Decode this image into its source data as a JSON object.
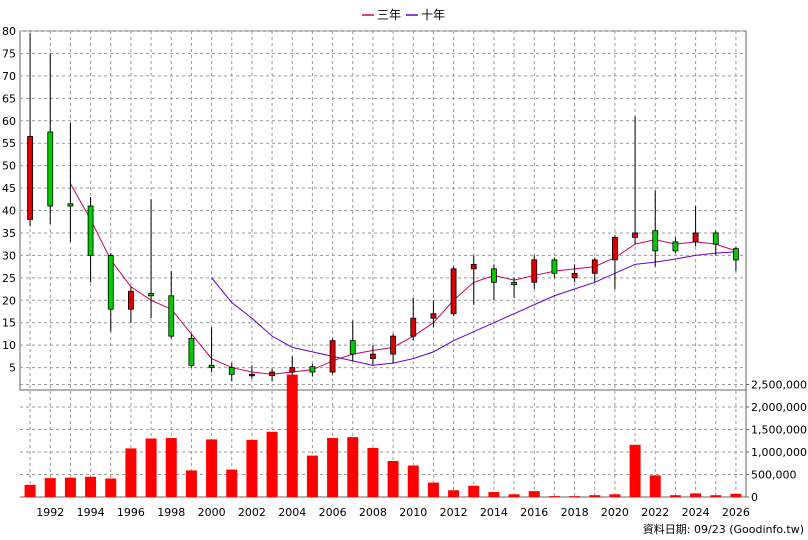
{
  "legend": [
    {
      "label": "三年",
      "color": "#cc0066"
    },
    {
      "label": "十年",
      "color": "#6600cc"
    }
  ],
  "footer": "資料日期: 09/23  (Goodinfo.tw)",
  "chart_data": {
    "type": "candlestick+bar",
    "price_axis": {
      "min": 0,
      "max": 80,
      "ticks": [
        5,
        10,
        15,
        20,
        25,
        30,
        35,
        40,
        45,
        50,
        55,
        60,
        65,
        70,
        75,
        80
      ],
      "side": "left"
    },
    "volume_axis": {
      "min": 0,
      "max": 2600000,
      "ticks": [
        0,
        500000,
        1000000,
        1500000,
        2000000,
        2500000
      ],
      "tick_labels": [
        "0",
        "500,000",
        "1,000,000",
        "1,500,000",
        "2,000,000",
        "2,500,000"
      ],
      "side": "right"
    },
    "x_axis": {
      "min": 1990.5,
      "max": 2026.5,
      "ticks": [
        1992,
        1994,
        1996,
        1998,
        2000,
        2002,
        2004,
        2006,
        2008,
        2010,
        2012,
        2014,
        2016,
        2018,
        2020,
        2022,
        2024,
        2026
      ]
    },
    "grid": true,
    "legend_position": "top-center",
    "colors": {
      "up": "#dd0000",
      "down": "#00cc00",
      "ma3": "#cc0066",
      "ma10": "#6600cc",
      "volume": "#ff0000",
      "grid": "#999999"
    },
    "candles": [
      {
        "year": 1991,
        "open": 38,
        "close": 56.5,
        "high": 79.5,
        "low": 36.5
      },
      {
        "year": 1992,
        "open": 57.5,
        "close": 41,
        "high": 75,
        "low": 37
      },
      {
        "year": 1993,
        "open": 41.5,
        "close": 41,
        "high": 59.5,
        "low": 33
      },
      {
        "year": 1994,
        "open": 41,
        "close": 30,
        "high": 43,
        "low": 24
      },
      {
        "year": 1995,
        "open": 30,
        "close": 18,
        "high": 30.5,
        "low": 13
      },
      {
        "year": 1996,
        "open": 18,
        "close": 22,
        "high": 23,
        "low": 15
      },
      {
        "year": 1997,
        "open": 21.5,
        "close": 21,
        "high": 42.5,
        "low": 16
      },
      {
        "year": 1998,
        "open": 21,
        "close": 12,
        "high": 26.5,
        "low": 11.5
      },
      {
        "year": 1999,
        "open": 11.5,
        "close": 5.5,
        "high": 12.5,
        "low": 5
      },
      {
        "year": 2000,
        "open": 5.5,
        "close": 5,
        "high": 14,
        "low": 4
      },
      {
        "year": 2001,
        "open": 5,
        "close": 3.5,
        "high": 6,
        "low": 2
      },
      {
        "year": 2002,
        "open": 3.5,
        "close": 3.5,
        "high": 5.5,
        "low": 2.5
      },
      {
        "year": 2003,
        "open": 3.2,
        "close": 4,
        "high": 4.8,
        "low": 2
      },
      {
        "year": 2004,
        "open": 4,
        "close": 5,
        "high": 7.5,
        "low": 3
      },
      {
        "year": 2005,
        "open": 5.2,
        "close": 4,
        "high": 5.8,
        "low": 3
      },
      {
        "year": 2006,
        "open": 4,
        "close": 11,
        "high": 11.5,
        "low": 3.5
      },
      {
        "year": 2007,
        "open": 11,
        "close": 8,
        "high": 15.5,
        "low": 6.5
      },
      {
        "year": 2008,
        "open": 7,
        "close": 8,
        "high": 10,
        "low": 5.5
      },
      {
        "year": 2009,
        "open": 8,
        "close": 12,
        "high": 12.5,
        "low": 6
      },
      {
        "year": 2010,
        "open": 12,
        "close": 16,
        "high": 20.5,
        "low": 11
      },
      {
        "year": 2011,
        "open": 16,
        "close": 17,
        "high": 20,
        "low": 14
      },
      {
        "year": 2012,
        "open": 17,
        "close": 27,
        "high": 27.5,
        "low": 16.5
      },
      {
        "year": 2013,
        "open": 27,
        "close": 28,
        "high": 30,
        "low": 19
      },
      {
        "year": 2014,
        "open": 27,
        "close": 24,
        "high": 28,
        "low": 20
      },
      {
        "year": 2015,
        "open": 24,
        "close": 23.5,
        "high": 25,
        "low": 20.5
      },
      {
        "year": 2016,
        "open": 24,
        "close": 29,
        "high": 30,
        "low": 22.5
      },
      {
        "year": 2017,
        "open": 29,
        "close": 26,
        "high": 29.5,
        "low": 25
      },
      {
        "year": 2018,
        "open": 25,
        "close": 26,
        "high": 28,
        "low": 24
      },
      {
        "year": 2019,
        "open": 26,
        "close": 29,
        "high": 29.5,
        "low": 24
      },
      {
        "year": 2020,
        "open": 29,
        "close": 34,
        "high": 34.5,
        "low": 22.5
      },
      {
        "year": 2021,
        "open": 34,
        "close": 35,
        "high": 61,
        "low": 32.5
      },
      {
        "year": 2022,
        "open": 35.5,
        "close": 31,
        "high": 44.5,
        "low": 27.5
      },
      {
        "year": 2023,
        "open": 33,
        "close": 31,
        "high": 34,
        "low": 30.5
      },
      {
        "year": 2024,
        "open": 33,
        "close": 35,
        "high": 41,
        "low": 32
      },
      {
        "year": 2025,
        "open": 35,
        "close": 32.5,
        "high": 35.5,
        "low": 30
      },
      {
        "year": 2026,
        "open": 31.5,
        "close": 29,
        "high": 32,
        "low": 26.5
      }
    ],
    "ma3": {
      "name": "三年",
      "x": [
        1993,
        1994,
        1995,
        1996,
        1997,
        1998,
        1999,
        2000,
        2001,
        2002,
        2003,
        2004,
        2005,
        2006,
        2007,
        2008,
        2009,
        2010,
        2011,
        2012,
        2013,
        2014,
        2015,
        2016,
        2017,
        2018,
        2019,
        2020,
        2021,
        2022,
        2023,
        2024,
        2025,
        2026
      ],
      "y": [
        46,
        38,
        29,
        23,
        20,
        18,
        12.5,
        7,
        5,
        4,
        3.5,
        4,
        4.5,
        6.5,
        8,
        8.8,
        9.5,
        12,
        15,
        20,
        24,
        25.5,
        24.5,
        25.5,
        26.5,
        27,
        27.5,
        29.5,
        32.5,
        33.5,
        32.5,
        33,
        32.5,
        31
      ]
    },
    "ma10": {
      "name": "十年",
      "x": [
        2000,
        2001,
        2002,
        2003,
        2004,
        2005,
        2006,
        2007,
        2008,
        2009,
        2010,
        2011,
        2012,
        2013,
        2014,
        2015,
        2016,
        2017,
        2018,
        2019,
        2020,
        2021,
        2022,
        2023,
        2024,
        2025,
        2026
      ],
      "y": [
        25,
        19.5,
        16,
        12,
        9.5,
        8.5,
        7.5,
        6.5,
        5.5,
        6,
        7,
        8.5,
        11,
        13,
        15,
        17,
        19,
        21,
        22.5,
        24,
        26,
        28,
        28.5,
        29.2,
        30,
        30.5,
        30.8
      ]
    },
    "volume": [
      {
        "year": 1991,
        "value": 270000
      },
      {
        "year": 1992,
        "value": 420000
      },
      {
        "year": 1993,
        "value": 430000
      },
      {
        "year": 1994,
        "value": 450000
      },
      {
        "year": 1995,
        "value": 410000
      },
      {
        "year": 1996,
        "value": 1080000
      },
      {
        "year": 1997,
        "value": 1300000
      },
      {
        "year": 1998,
        "value": 1310000
      },
      {
        "year": 1999,
        "value": 590000
      },
      {
        "year": 2000,
        "value": 1280000
      },
      {
        "year": 2001,
        "value": 610000
      },
      {
        "year": 2002,
        "value": 1270000
      },
      {
        "year": 2003,
        "value": 1450000
      },
      {
        "year": 2004,
        "value": 2720000
      },
      {
        "year": 2005,
        "value": 920000
      },
      {
        "year": 2006,
        "value": 1310000
      },
      {
        "year": 2007,
        "value": 1330000
      },
      {
        "year": 2008,
        "value": 1090000
      },
      {
        "year": 2009,
        "value": 800000
      },
      {
        "year": 2010,
        "value": 700000
      },
      {
        "year": 2011,
        "value": 320000
      },
      {
        "year": 2012,
        "value": 150000
      },
      {
        "year": 2013,
        "value": 250000
      },
      {
        "year": 2014,
        "value": 110000
      },
      {
        "year": 2015,
        "value": 60000
      },
      {
        "year": 2016,
        "value": 130000
      },
      {
        "year": 2017,
        "value": 20000
      },
      {
        "year": 2018,
        "value": 20000
      },
      {
        "year": 2019,
        "value": 40000
      },
      {
        "year": 2020,
        "value": 60000
      },
      {
        "year": 2021,
        "value": 1160000
      },
      {
        "year": 2022,
        "value": 480000
      },
      {
        "year": 2023,
        "value": 40000
      },
      {
        "year": 2024,
        "value": 80000
      },
      {
        "year": 2025,
        "value": 40000
      },
      {
        "year": 2026,
        "value": 70000
      }
    ]
  }
}
